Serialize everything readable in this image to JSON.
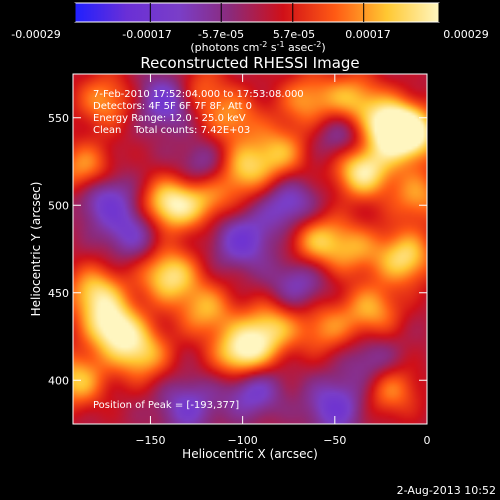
{
  "colorbar": {
    "ticks": [
      "-0.00029",
      "-0.00017",
      "-5.7e-05",
      "5.7e-05",
      "0.00017",
      "0.00029"
    ],
    "tick_values": [
      -0.00029,
      -0.00017,
      -5.7e-05,
      5.7e-05,
      0.00017,
      0.00029
    ],
    "range": [
      -0.00029,
      0.00029
    ],
    "units_parts": {
      "a": "(photons cm",
      "b": "-2",
      "c": " s",
      "d": "-1",
      "e": " asec",
      "f": "-2",
      "g": ")"
    },
    "colormap": [
      "#2020ff",
      "#6a2fd6",
      "#7a3ec8",
      "#8c2a7a",
      "#d01018",
      "#ff5a14",
      "#ffc832",
      "#fff6c0"
    ]
  },
  "chart_data": {
    "type": "heatmap",
    "title": "Reconstructed RHESSI Image",
    "xlabel": "Heliocentric X (arcsec)",
    "ylabel": "Heliocentric Y (arcsec)",
    "xlim": [
      -192,
      0
    ],
    "ylim": [
      375,
      575
    ],
    "x_ticks": [
      -150,
      -100,
      -50,
      0
    ],
    "y_ticks": [
      400,
      450,
      500,
      550
    ],
    "peak": {
      "x": -193,
      "y": 377
    },
    "hot_spots": [
      {
        "x": -20,
        "y": 545,
        "v": 1.0
      },
      {
        "x": -35,
        "y": 520,
        "v": 0.95
      },
      {
        "x": -8,
        "y": 540,
        "v": 0.85
      },
      {
        "x": -40,
        "y": 560,
        "v": 0.65
      },
      {
        "x": -65,
        "y": 560,
        "v": 0.55
      },
      {
        "x": -125,
        "y": 565,
        "v": 0.5
      },
      {
        "x": -175,
        "y": 560,
        "v": 0.55
      },
      {
        "x": -185,
        "y": 520,
        "v": 0.65
      },
      {
        "x": -180,
        "y": 450,
        "v": 0.75
      },
      {
        "x": -170,
        "y": 430,
        "v": 0.95
      },
      {
        "x": -155,
        "y": 415,
        "v": 0.7
      },
      {
        "x": -140,
        "y": 460,
        "v": 0.85
      },
      {
        "x": -120,
        "y": 440,
        "v": 0.6
      },
      {
        "x": -100,
        "y": 415,
        "v": 1.0
      },
      {
        "x": -85,
        "y": 430,
        "v": 0.7
      },
      {
        "x": -140,
        "y": 500,
        "v": 0.9
      },
      {
        "x": -120,
        "y": 505,
        "v": 0.6
      },
      {
        "x": -100,
        "y": 520,
        "v": 0.7
      },
      {
        "x": -80,
        "y": 530,
        "v": 0.6
      },
      {
        "x": -105,
        "y": 550,
        "v": 0.5
      },
      {
        "x": -60,
        "y": 480,
        "v": 0.65
      },
      {
        "x": -40,
        "y": 475,
        "v": 0.5
      },
      {
        "x": -12,
        "y": 470,
        "v": 0.8
      },
      {
        "x": -30,
        "y": 440,
        "v": 0.6
      },
      {
        "x": -55,
        "y": 430,
        "v": 0.5
      },
      {
        "x": -190,
        "y": 400,
        "v": 0.7
      },
      {
        "x": -20,
        "y": 395,
        "v": 0.55
      },
      {
        "x": -5,
        "y": 505,
        "v": 0.55
      }
    ],
    "cold_spots": [
      {
        "x": -140,
        "y": 560,
        "v": -0.7
      },
      {
        "x": -175,
        "y": 505,
        "v": -0.6
      },
      {
        "x": -120,
        "y": 520,
        "v": -0.5
      },
      {
        "x": -75,
        "y": 500,
        "v": -0.55
      },
      {
        "x": -100,
        "y": 480,
        "v": -0.6
      },
      {
        "x": -95,
        "y": 395,
        "v": -0.6
      },
      {
        "x": -130,
        "y": 385,
        "v": -0.5
      },
      {
        "x": -50,
        "y": 385,
        "v": -0.6
      },
      {
        "x": -45,
        "y": 540,
        "v": -0.45
      },
      {
        "x": -160,
        "y": 485,
        "v": -0.5
      },
      {
        "x": -30,
        "y": 410,
        "v": -0.4
      },
      {
        "x": -70,
        "y": 455,
        "v": -0.45
      }
    ]
  },
  "info": {
    "time_range": "7-Feb-2010 17:52:04.000 to 17:53:08.000",
    "detectors": "Detectors: 4F 5F 6F 7F 8F, Att 0",
    "energy": "Energy Range: 12.0 - 25.0 keV",
    "clean": "Clean    Total counts: 7.42E+03",
    "peak": "Position of Peak = [-193,377]"
  },
  "timestamp": "2-Aug-2013 10:52"
}
